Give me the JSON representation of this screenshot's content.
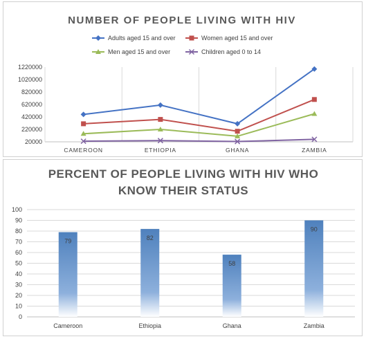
{
  "chart_data": [
    {
      "type": "line",
      "title": "NUMBER OF PEOPLE LIVING WITH HIV",
      "categories": [
        "CAMEROON",
        "ETHIOPIA",
        "GHANA",
        "ZAMBIA"
      ],
      "series": [
        {
          "name": "Adults aged 15 and over",
          "values": [
            460000,
            610000,
            310000,
            1190000
          ],
          "color": "#4472C4",
          "marker": "diamond"
        },
        {
          "name": "Women aged 15 and over",
          "values": [
            310000,
            380000,
            190000,
            700000
          ],
          "color": "#C0504D",
          "marker": "square"
        },
        {
          "name": "Men aged 15 and over",
          "values": [
            150000,
            220000,
            110000,
            470000
          ],
          "color": "#9BBB59",
          "marker": "triangle"
        },
        {
          "name": "Children aged 0 to 14",
          "values": [
            30000,
            40000,
            25000,
            60000
          ],
          "color": "#8064A2",
          "marker": "x"
        }
      ],
      "yticks": [
        "1220000",
        "1020000",
        "820000",
        "620000",
        "420000",
        "220000",
        "20000"
      ],
      "ylim": [
        20000,
        1220000
      ],
      "grid": "vertical",
      "legend": "top"
    },
    {
      "type": "bar",
      "title": "PERCENT OF PEOPLE LIVING WITH HIV WHO KNOW THEIR STATUS",
      "title_lines": [
        "PERCENT OF PEOPLE LIVING WITH HIV WHO",
        "KNOW THEIR STATUS"
      ],
      "categories": [
        "Cameroon",
        "Ethiopia",
        "Ghana",
        "Zambia"
      ],
      "values": [
        79,
        82,
        58,
        90
      ],
      "yticks": [
        "100",
        "90",
        "80",
        "70",
        "60",
        "50",
        "40",
        "30",
        "20",
        "10",
        "0"
      ],
      "ylim": [
        0,
        100
      ],
      "color": "#4F81BD",
      "grid": "horizontal",
      "data_labels": true
    }
  ]
}
